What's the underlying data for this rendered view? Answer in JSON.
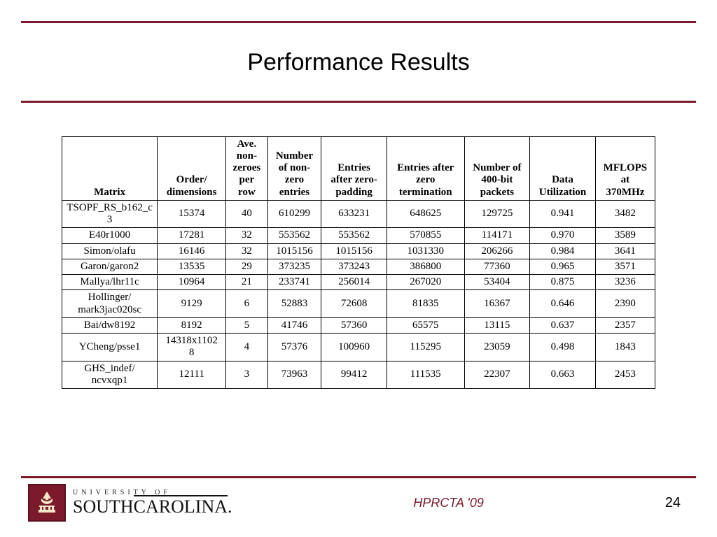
{
  "colors": {
    "accent": "#7a1a2b",
    "text": "#000000",
    "bg": "#ffffff",
    "border": "#000000"
  },
  "title": "Performance Results",
  "table": {
    "type": "table",
    "header_fontweight": "bold",
    "cell_fontsize": 15,
    "font_family": "Times New Roman",
    "border_color": "#000000",
    "columns": [
      "Matrix",
      "Order/ dimensions",
      "Ave. non-zeroes per row",
      "Number of non-zero entries",
      "Entries after zero-padding",
      "Entries after zero termination",
      "Number of 400-bit packets",
      "Data Utilization",
      "MFLOPS at 370MHz"
    ],
    "rows": [
      [
        "TSOPF_RS_b162_c3",
        "15374",
        "40",
        "610299",
        "633231",
        "648625",
        "129725",
        "0.941",
        "3482"
      ],
      [
        "E40r1000",
        "17281",
        "32",
        "553562",
        "553562",
        "570855",
        "114171",
        "0.970",
        "3589"
      ],
      [
        "Simon/olafu",
        "16146",
        "32",
        "1015156",
        "1015156",
        "1031330",
        "206266",
        "0.984",
        "3641"
      ],
      [
        "Garon/garon2",
        "13535",
        "29",
        "373235",
        "373243",
        "386800",
        "77360",
        "0.965",
        "3571"
      ],
      [
        "Mallya/lhr11c",
        "10964",
        "21",
        "233741",
        "256014",
        "267020",
        "53404",
        "0.875",
        "3236"
      ],
      [
        "Hollinger/ mark3jac020sc",
        "9129",
        "6",
        "52883",
        "72608",
        "81835",
        "16367",
        "0.646",
        "2390"
      ],
      [
        "Bai/dw8192",
        "8192",
        "5",
        "41746",
        "57360",
        "65575",
        "13115",
        "0.637",
        "2357"
      ],
      [
        "YCheng/psse1",
        "14318x11028",
        "4",
        "57376",
        "100960",
        "115295",
        "23059",
        "0.498",
        "1843"
      ],
      [
        "GHS_indef/ ncvxqp1",
        "12111",
        "3",
        "73963",
        "99412",
        "111535",
        "22307",
        "0.663",
        "2453"
      ]
    ]
  },
  "footer": {
    "university_line1": "UNIVERSITY OF",
    "university_line2_a": "SOUTH",
    "university_line2_b": "CAROLINA",
    "university_suffix": ".",
    "conference": "HPRCTA '09",
    "page_number": "24"
  }
}
